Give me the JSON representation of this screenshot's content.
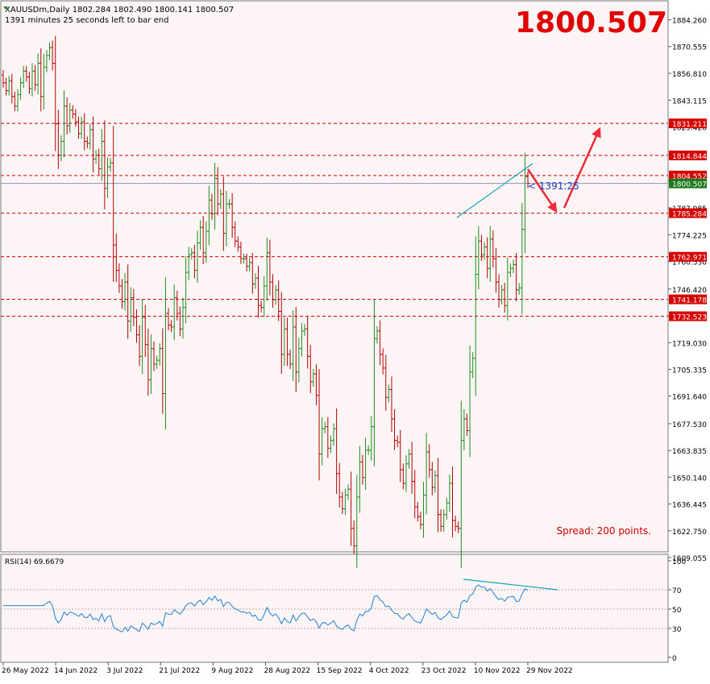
{
  "header": {
    "symbol_line": "XAUUSDm,Daily  1802.284 1802.490 1800.141 1800.507",
    "timer_line": "1391 minutes 25 seconds left to bar end",
    "big_price": "1800.507",
    "countdown": "< 1391:25",
    "spread": "Spread: 200 points."
  },
  "colors": {
    "background": "#fdf5f5",
    "bull": "#1e8c1e",
    "bear": "#b40000",
    "level_line": "#d50000",
    "trendline": "#17a2b8",
    "arrow": "#ee2a3a",
    "rsi": "#1f7fd6",
    "big_price": "#e00000",
    "current_price_label": "#1e7a1e"
  },
  "chart_data": [
    {
      "type": "candlestick",
      "symbol": "XAUUSDm",
      "timeframe": "Daily",
      "ylim": [
        1609.055,
        1890.5
      ],
      "y_ticks": [
        1884.26,
        1870.555,
        1856.81,
        1843.115,
        1829.42,
        1815.675,
        1801.93,
        1787.985,
        1774.225,
        1760.53,
        1746.42,
        1732.725,
        1719.03,
        1705.335,
        1691.64,
        1677.53,
        1663.835,
        1650.14,
        1636.445,
        1622.75,
        1609.055
      ],
      "y_tick_labels": [
        "1884.260",
        "1870.555",
        "1856.810",
        "1843.115",
        "1829.420",
        "1815.675",
        "",
        "1787.985",
        "1774.225",
        "1760.530",
        "1746.420",
        "",
        "1719.030",
        "1705.335",
        "1691.640",
        "1677.530",
        "1663.835",
        "1650.140",
        "1636.445",
        "1622.750",
        "1609.055"
      ],
      "x_labels": [
        "26 May 2022",
        "14 Jun 2022",
        "3 Jul 2022",
        "21 Jul 2022",
        "9 Aug 2022",
        "28 Aug 2022",
        "15 Sep 2022",
        "4 Oct 2022",
        "23 Oct 2022",
        "10 Nov 2022",
        "29 Nov 2022"
      ],
      "horizontal_levels": [
        1831.211,
        1814.844,
        1804.552,
        1785.284,
        1762.971,
        1741.178,
        1732.523
      ],
      "current_price": 1800.507,
      "closes": [
        1852,
        1848,
        1853,
        1845,
        1840,
        1846,
        1852,
        1858,
        1855,
        1849,
        1858,
        1851,
        1862,
        1845,
        1860,
        1866,
        1870,
        1862,
        1831,
        1815,
        1822,
        1840,
        1830,
        1838,
        1836,
        1832,
        1826,
        1832,
        1822,
        1821,
        1828,
        1813,
        1815,
        1808,
        1822,
        1798,
        1809,
        1811,
        1769,
        1756,
        1748,
        1740,
        1750,
        1730,
        1742,
        1732,
        1723,
        1712,
        1732,
        1718,
        1700,
        1716,
        1708,
        1710,
        1716,
        1693,
        1734,
        1728,
        1727,
        1742,
        1734,
        1726,
        1737,
        1755,
        1764,
        1765,
        1756,
        1770,
        1778,
        1765,
        1776,
        1792,
        1785,
        1803,
        1790,
        1795,
        1775,
        1790,
        1790,
        1778,
        1771,
        1768,
        1762,
        1762,
        1758,
        1760,
        1749,
        1752,
        1738,
        1737,
        1748,
        1765,
        1750,
        1741,
        1746,
        1735,
        1713,
        1726,
        1713,
        1708,
        1727,
        1704,
        1716,
        1725,
        1726,
        1712,
        1699,
        1703,
        1692,
        1662,
        1675,
        1676,
        1665,
        1669,
        1675,
        1652,
        1640,
        1634,
        1641,
        1644,
        1624,
        1615,
        1640,
        1658,
        1650,
        1664,
        1664,
        1676,
        1721,
        1725,
        1713,
        1706,
        1691,
        1695,
        1680,
        1669,
        1668,
        1654,
        1647,
        1657,
        1662,
        1648,
        1635,
        1630,
        1626,
        1641,
        1663,
        1654,
        1645,
        1651,
        1631,
        1625,
        1631,
        1637,
        1647,
        1628,
        1625,
        1624,
        1669,
        1680,
        1674,
        1704,
        1711,
        1754,
        1771,
        1764,
        1768,
        1757,
        1772,
        1762,
        1750,
        1741,
        1746,
        1738,
        1755,
        1757,
        1759,
        1746,
        1747,
        1777,
        1804,
        1800.5
      ],
      "title": "",
      "xlabel": "",
      "ylabel": ""
    },
    {
      "type": "line",
      "title": "RSI(14) 69.6679",
      "ylim": [
        0,
        100
      ],
      "y_ticks": [
        0,
        30,
        50,
        70,
        100
      ],
      "levels": [
        30,
        50,
        70
      ],
      "last_value": 69.6679
    }
  ]
}
